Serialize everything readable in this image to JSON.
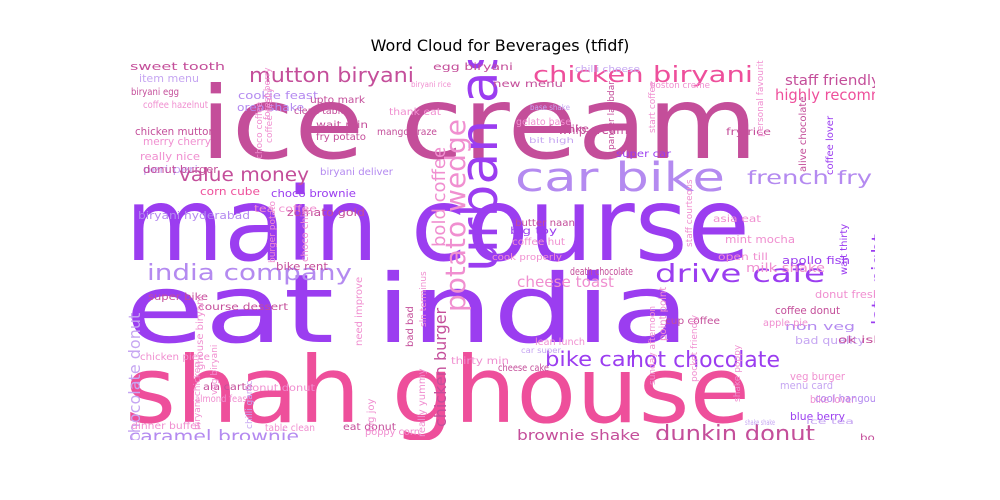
{
  "title": "Word Cloud for Beverages (tfidf)",
  "palette": {
    "magenta": "#c44e9a",
    "purple": "#9b3df0",
    "pink": "#ee4f9b",
    "lavender": "#b48af0",
    "light_pink": "#f08fd0",
    "light_purple": "#c6a6f2"
  },
  "words": [
    {
      "text": "ice cream",
      "color": "magenta",
      "weight": 100
    },
    {
      "text": "main course",
      "color": "purple",
      "weight": 96
    },
    {
      "text": "eat india",
      "color": "purple",
      "weight": 92
    },
    {
      "text": "shah ghouse",
      "color": "pink",
      "weight": 88
    },
    {
      "text": "urban asia",
      "color": "purple",
      "weight": 55
    },
    {
      "text": "car bike",
      "color": "lavender",
      "weight": 50
    },
    {
      "text": "chicken biryani",
      "color": "pink",
      "weight": 35
    },
    {
      "text": "mutton biryani",
      "color": "magenta",
      "weight": 33
    },
    {
      "text": "potato wedge",
      "color": "light_pink",
      "weight": 36
    },
    {
      "text": "india company",
      "color": "lavender",
      "weight": 33
    },
    {
      "text": "drive cafe",
      "color": "purple",
      "weight": 32
    },
    {
      "text": "hot chocolate",
      "color": "purple",
      "weight": 30
    },
    {
      "text": "bold coffee",
      "color": "light_pink",
      "weight": 28
    },
    {
      "text": "french fry",
      "color": "lavender",
      "weight": 28
    },
    {
      "text": "dunkin donut",
      "color": "magenta",
      "weight": 28
    },
    {
      "text": "value money",
      "color": "magenta",
      "weight": 27
    },
    {
      "text": "bike car",
      "color": "purple",
      "weight": 26
    },
    {
      "text": "late night",
      "color": "purple",
      "weight": 26
    },
    {
      "text": "caramel brownie",
      "color": "lavender",
      "weight": 25
    },
    {
      "text": "brownie shake",
      "color": "magenta",
      "weight": 22
    },
    {
      "text": "cheese toast",
      "color": "light_pink",
      "weight": 22
    },
    {
      "text": "chocolate donut",
      "color": "light_purple",
      "weight": 21
    },
    {
      "text": "chicken burger",
      "color": "magenta",
      "weight": 21
    },
    {
      "text": "highly recommend",
      "color": "pink",
      "weight": 18
    },
    {
      "text": "staff friendly",
      "color": "magenta",
      "weight": 16
    },
    {
      "text": "whip cream",
      "color": "magenta",
      "weight": 15
    },
    {
      "text": "milk shake",
      "color": "light_pink",
      "weight": 15
    },
    {
      "text": "zomato gold",
      "color": "magenta",
      "weight": 15
    },
    {
      "text": "choco brownie",
      "color": "purple",
      "weight": 15
    },
    {
      "text": "biryani hyderabad",
      "color": "lavender",
      "weight": 15
    },
    {
      "text": "apollo fish",
      "color": "purple",
      "weight": 15
    },
    {
      "text": "mint mocha",
      "color": "light_pink",
      "weight": 14
    },
    {
      "text": "donut fresh",
      "color": "light_pink",
      "weight": 14
    },
    {
      "text": "coffee donut",
      "color": "magenta",
      "weight": 14
    },
    {
      "text": "bike rent",
      "color": "magenta",
      "weight": 14
    },
    {
      "text": "death chocolate",
      "color": "magenta",
      "weight": 14
    },
    {
      "text": "bad quality",
      "color": "light_purple",
      "weight": 14
    },
    {
      "text": "non veg",
      "color": "lavender",
      "weight": 14
    },
    {
      "text": "bike lover",
      "color": "light_pink",
      "weight": 14
    },
    {
      "text": "menu card",
      "color": "light_purple",
      "weight": 14
    },
    {
      "text": "cool hangout",
      "color": "lavender",
      "weight": 14
    },
    {
      "text": "blue berry",
      "color": "purple",
      "weight": 14
    },
    {
      "text": "veg burger",
      "color": "light_pink",
      "weight": 13
    },
    {
      "text": "sweet tooth",
      "color": "magenta",
      "weight": 14
    },
    {
      "text": "item menu",
      "color": "light_purple",
      "weight": 14
    },
    {
      "text": "merry cherry",
      "color": "light_pink",
      "weight": 13
    },
    {
      "text": "really nice",
      "color": "light_pink",
      "weight": 14
    },
    {
      "text": "chicken mutton",
      "color": "magenta",
      "weight": 13
    },
    {
      "text": "corn cube",
      "color": "pink",
      "weight": 13
    },
    {
      "text": "peri peri",
      "color": "light_purple",
      "weight": 13
    },
    {
      "text": "cookie feast",
      "color": "lavender",
      "weight": 13
    },
    {
      "text": "oreo shake",
      "color": "lavender",
      "weight": 13
    },
    {
      "text": "donut burger",
      "color": "magenta",
      "weight": 13
    },
    {
      "text": "coffee hazelnut",
      "color": "light_pink",
      "weight": 12
    },
    {
      "text": "biryani egg",
      "color": "magenta",
      "weight": 12
    },
    {
      "text": "egg biryani",
      "color": "magenta",
      "weight": 12
    },
    {
      "text": "new menu",
      "color": "magenta",
      "weight": 12
    },
    {
      "text": "thank eat",
      "color": "light_pink",
      "weight": 12
    },
    {
      "text": "gelato base",
      "color": "light_pink",
      "weight": 12
    },
    {
      "text": "cafe bike",
      "color": "magenta",
      "weight": 12
    },
    {
      "text": "butter naan",
      "color": "magenta",
      "weight": 12
    },
    {
      "text": "mango craze",
      "color": "magenta",
      "weight": 12
    },
    {
      "text": "wait min",
      "color": "magenta",
      "weight": 12
    },
    {
      "text": "upto mark",
      "color": "magenta",
      "weight": 12
    },
    {
      "text": "fry potato",
      "color": "magenta",
      "weight": 12
    },
    {
      "text": "clean table",
      "color": "magenta",
      "weight": 12
    },
    {
      "text": "tea coffee",
      "color": "light_pink",
      "weight": 12
    },
    {
      "text": "biryani deliver",
      "color": "lavender",
      "weight": 12
    },
    {
      "text": "choco chip",
      "color": "light_pink",
      "weight": 12
    },
    {
      "text": "asia eat",
      "color": "light_pink",
      "weight": 12
    },
    {
      "text": "open till",
      "color": "light_pink",
      "weight": 12
    },
    {
      "text": "fry rice",
      "color": "magenta",
      "weight": 12
    },
    {
      "text": "super car",
      "color": "purple",
      "weight": 12
    },
    {
      "text": "coffee lover",
      "color": "purple",
      "weight": 12
    },
    {
      "text": "alive chocolate",
      "color": "magenta",
      "weight": 12
    },
    {
      "text": "nice hangout",
      "color": "magenta",
      "weight": 12
    },
    {
      "text": "course dessert",
      "color": "magenta",
      "weight": 12
    },
    {
      "text": "super bike",
      "color": "magenta",
      "weight": 12
    },
    {
      "text": "chicken piece",
      "color": "light_pink",
      "weight": 12
    },
    {
      "text": "ghouse biryani",
      "color": "light_pink",
      "weight": 12
    },
    {
      "text": "ala carte",
      "color": "magenta",
      "weight": 12
    },
    {
      "text": "almond feast",
      "color": "light_pink",
      "weight": 11
    },
    {
      "text": "donut donut",
      "color": "light_pink",
      "weight": 12
    },
    {
      "text": "cup coffee",
      "color": "magenta",
      "weight": 12
    },
    {
      "text": "thirty min",
      "color": "light_pink",
      "weight": 12
    },
    {
      "text": "cheese cake",
      "color": "magenta",
      "weight": 11
    },
    {
      "text": "eat donut",
      "color": "magenta",
      "weight": 12
    },
    {
      "text": "table clean",
      "color": "light_pink",
      "weight": 12
    },
    {
      "text": "poppy corn",
      "color": "light_pink",
      "weight": 12
    },
    {
      "text": "dinner buffet",
      "color": "light_pink",
      "weight": 12
    },
    {
      "text": "big toy",
      "color": "purple",
      "weight": 12
    },
    {
      "text": "coffee hut",
      "color": "light_pink",
      "weight": 11
    },
    {
      "text": "lean lunch",
      "color": "light_pink",
      "weight": 11
    },
    {
      "text": "point point",
      "color": "light_pink",
      "weight": 11
    },
    {
      "text": "book table",
      "color": "magenta",
      "weight": 11
    },
    {
      "text": "really yummy",
      "color": "light_pink",
      "weight": 11
    },
    {
      "text": "bad bad",
      "color": "magenta",
      "weight": 11
    },
    {
      "text": "need improve",
      "color": "light_pink",
      "weight": 11
    },
    {
      "text": "big joy",
      "color": "light_pink",
      "weight": 11
    },
    {
      "text": "wait thirty",
      "color": "purple",
      "weight": 11
    },
    {
      "text": "apple pie",
      "color": "light_pink",
      "weight": 11
    },
    {
      "text": "financial district",
      "color": "light_pink",
      "weight": 11
    },
    {
      "text": "ok ish",
      "color": "magenta",
      "weight": 11
    },
    {
      "text": "boston creme",
      "color": "light_pink",
      "weight": 10
    },
    {
      "text": "chilli cheese",
      "color": "light_purple",
      "weight": 10
    },
    {
      "text": "chilli garlic",
      "color": "light_purple",
      "weight": 10
    },
    {
      "text": "biryani chicken",
      "color": "light_pink",
      "weight": 11
    },
    {
      "text": "burger potato",
      "color": "light_pink",
      "weight": 10
    },
    {
      "text": "veg biryani",
      "color": "light_pink",
      "weight": 10
    },
    {
      "text": "coffee really",
      "color": "light_pink",
      "weight": 10
    },
    {
      "text": "forest berry",
      "color": "light_pink",
      "weight": 10
    },
    {
      "text": "choco coffee",
      "color": "light_pink",
      "weight": 10
    },
    {
      "text": "cook properly",
      "color": "light_pink",
      "weight": 10
    },
    {
      "text": "paneer labbdar",
      "color": "magenta",
      "weight": 10
    },
    {
      "text": "personal favourite",
      "color": "light_pink",
      "weight": 10
    },
    {
      "text": "sunday afternoon",
      "color": "light_pink",
      "weight": 10
    },
    {
      "text": "pocket friendly",
      "color": "light_pink",
      "weight": 10
    },
    {
      "text": "shake poppy",
      "color": "light_pink",
      "weight": 10
    },
    {
      "text": "burger donut",
      "color": "light_pink",
      "weight": 10
    },
    {
      "text": "staff courteous",
      "color": "light_pink",
      "weight": 10
    },
    {
      "text": "sln terminus",
      "color": "light_pink",
      "weight": 10
    },
    {
      "text": "start coffee",
      "color": "light_pink",
      "weight": 10
    },
    {
      "text": "biryani rice",
      "color": "light_pink",
      "weight": 10
    },
    {
      "text": "bit high",
      "color": "light_purple",
      "weight": 9
    },
    {
      "text": "base shake",
      "color": "light_purple",
      "weight": 9
    },
    {
      "text": "car super",
      "color": "light_purple",
      "weight": 9
    },
    {
      "text": "shake shake",
      "color": "light_purple",
      "weight": 9
    },
    {
      "text": "ice tea",
      "color": "light_purple",
      "weight": 9
    },
    {
      "text": "special chicken",
      "color": "light_purple",
      "weight": 9
    }
  ]
}
